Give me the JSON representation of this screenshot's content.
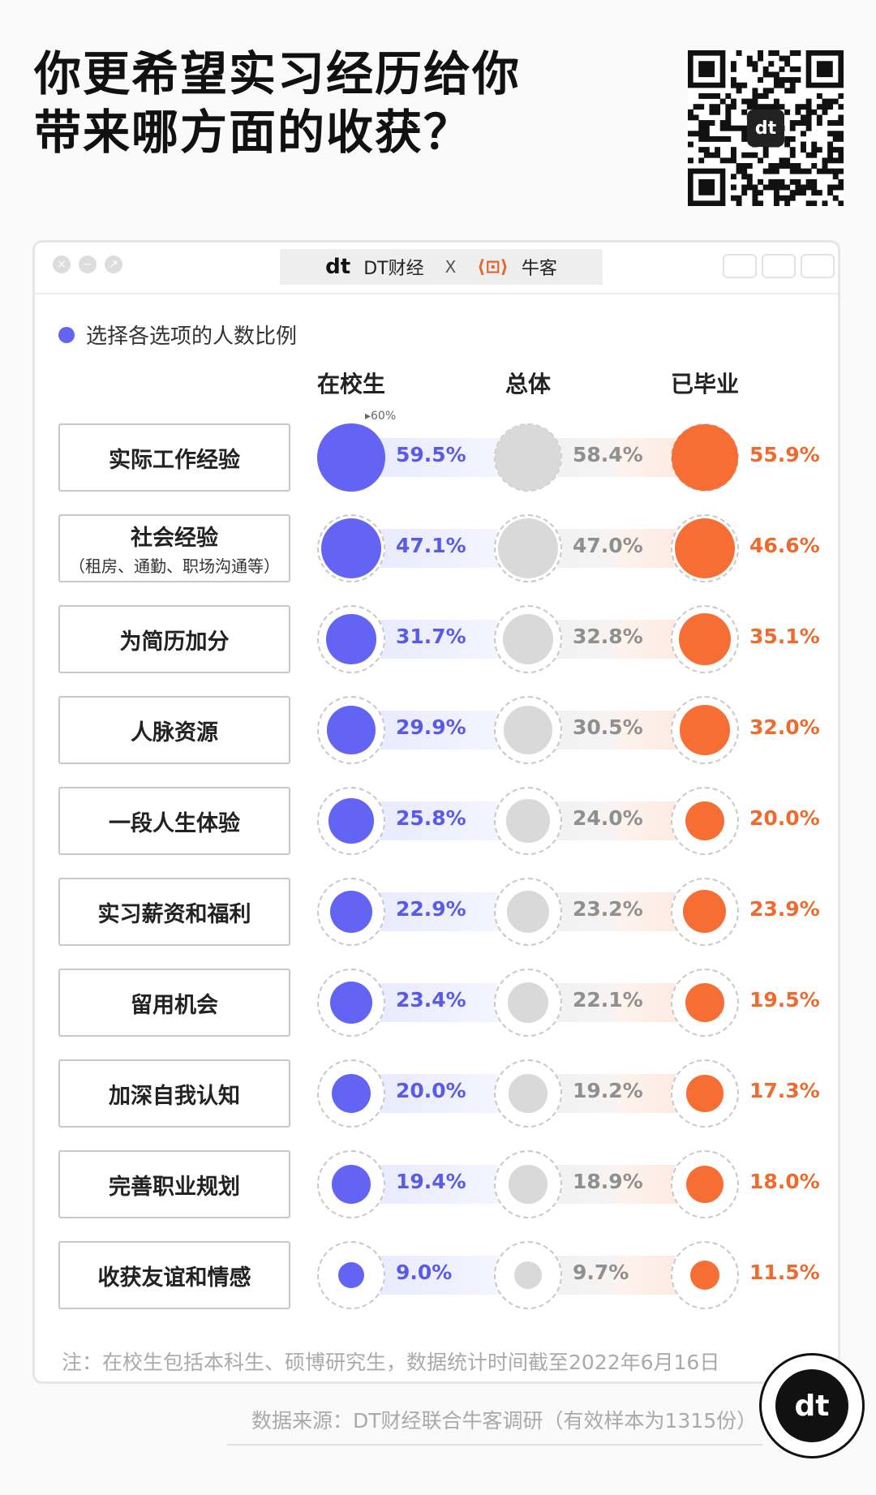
{
  "title_lines": [
    "你更希望实习经历给你",
    "带来哪方面的收获？"
  ],
  "brand": {
    "logo": "dt",
    "name": "DT财经",
    "x": "X",
    "partner": "牛客"
  },
  "legend": "选择各选项的人数比例",
  "columns": [
    "在校生",
    "总体",
    "已毕业"
  ],
  "scale_note": "▸60%",
  "rows": [
    {
      "label": "实际工作经验",
      "sub": "",
      "v": [
        "59.5%",
        "58.4%",
        "55.9%"
      ]
    },
    {
      "label": "社会经验",
      "sub": "（租房、通勤、职场沟通等）",
      "v": [
        "47.1%",
        "47.0%",
        "46.6%"
      ]
    },
    {
      "label": "为简历加分",
      "sub": "",
      "v": [
        "31.7%",
        "32.8%",
        "35.1%"
      ]
    },
    {
      "label": "人脉资源",
      "sub": "",
      "v": [
        "29.9%",
        "30.5%",
        "32.0%"
      ]
    },
    {
      "label": "一段人生体验",
      "sub": "",
      "v": [
        "25.8%",
        "24.0%",
        "20.0%"
      ]
    },
    {
      "label": "实习薪资和福利",
      "sub": "",
      "v": [
        "22.9%",
        "23.2%",
        "23.9%"
      ]
    },
    {
      "label": "留用机会",
      "sub": "",
      "v": [
        "23.4%",
        "22.1%",
        "19.5%"
      ]
    },
    {
      "label": "加深自我认知",
      "sub": "",
      "v": [
        "20.0%",
        "19.2%",
        "17.3%"
      ]
    },
    {
      "label": "完善职业规划",
      "sub": "",
      "v": [
        "19.4%",
        "18.9%",
        "18.0%"
      ]
    },
    {
      "label": "收获友谊和情感",
      "sub": "",
      "v": [
        "9.0%",
        "9.7%",
        "11.5%"
      ]
    }
  ],
  "colors": {
    "students": "#6464f4",
    "overall": "#d9d9d9",
    "graduates": "#f76e35"
  },
  "note": "注：在校生包括本科生、硕博研究生，数据统计时间截至2022年6月16日",
  "source": "数据来源：DT财经联合牛客调研（有效样本为1315份）",
  "badge": "dt",
  "chart_data": {
    "type": "bubble",
    "categories": [
      "实际工作经验",
      "社会经验",
      "为简历加分",
      "人脉资源",
      "一段人生体验",
      "实习薪资和福利",
      "留用机会",
      "加深自我认知",
      "完善职业规划",
      "收获友谊和情感"
    ],
    "series": [
      {
        "name": "在校生",
        "values": [
          59.5,
          47.1,
          31.7,
          29.9,
          25.8,
          22.9,
          23.4,
          20.0,
          19.4,
          9.0
        ]
      },
      {
        "name": "总体",
        "values": [
          58.4,
          47.0,
          32.8,
          30.5,
          24.0,
          23.2,
          22.1,
          19.2,
          18.9,
          9.7
        ]
      },
      {
        "name": "已毕业",
        "values": [
          55.9,
          46.6,
          35.1,
          32.0,
          20.0,
          23.9,
          19.5,
          17.3,
          18.0,
          11.5
        ]
      }
    ],
    "max": 60,
    "legend": "选择各选项的人数比例"
  }
}
